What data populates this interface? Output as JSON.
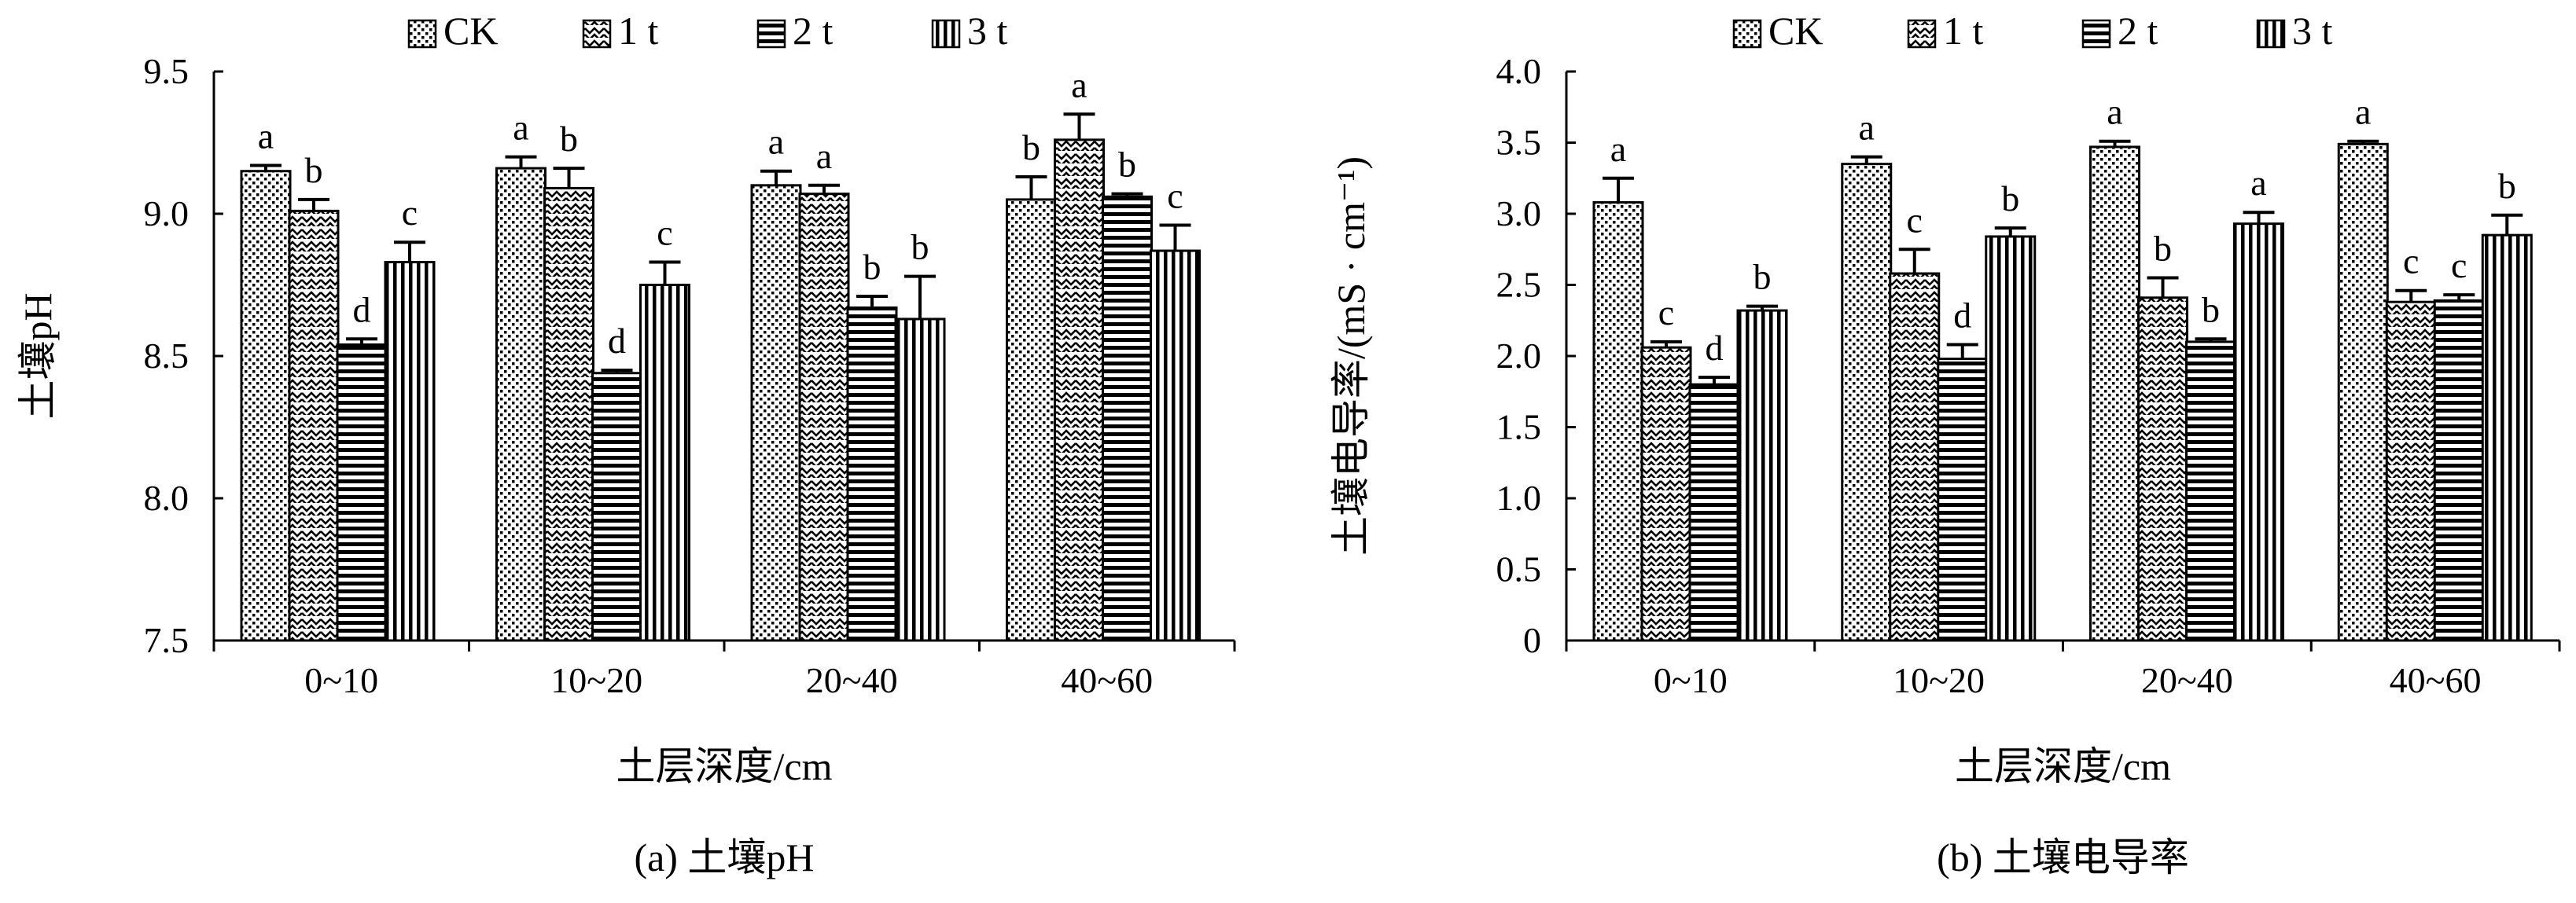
{
  "chart_data": [
    {
      "type": "bar",
      "caption": "(a) 土壤pH",
      "xlabel": "土层深度/cm",
      "ylabel": "土壤pH",
      "ylim": [
        7.5,
        9.5
      ],
      "yticks": [
        "7.5",
        "8.0",
        "8.5",
        "9.0",
        "9.5"
      ],
      "categories": [
        "0~10",
        "10~20",
        "20~40",
        "40~60"
      ],
      "legend_position": "top",
      "series": [
        {
          "name": "CK",
          "pattern": "dots",
          "values": [
            9.15,
            9.16,
            9.1,
            9.05
          ],
          "errors": [
            0.02,
            0.04,
            0.05,
            0.08
          ],
          "labels": [
            "a",
            "a",
            "a",
            "b"
          ]
        },
        {
          "name": "1 t",
          "pattern": "zigzag",
          "values": [
            9.01,
            9.09,
            9.07,
            9.26
          ],
          "errors": [
            0.04,
            0.07,
            0.03,
            0.09
          ],
          "labels": [
            "b",
            "b",
            "a",
            "a"
          ]
        },
        {
          "name": "2 t",
          "pattern": "hlines",
          "values": [
            8.54,
            8.44,
            8.67,
            9.06
          ],
          "errors": [
            0.02,
            0.01,
            0.04,
            0.01
          ],
          "labels": [
            "d",
            "d",
            "b",
            "b"
          ]
        },
        {
          "name": "3 t",
          "pattern": "vlines",
          "values": [
            8.83,
            8.75,
            8.63,
            8.87
          ],
          "errors": [
            0.07,
            0.08,
            0.15,
            0.09
          ],
          "labels": [
            "c",
            "c",
            "b",
            "c"
          ]
        }
      ]
    },
    {
      "type": "bar",
      "caption": "(b) 土壤电导率",
      "xlabel": "土层深度/cm",
      "ylabel": "土壤电导率/(mS · cm⁻¹)",
      "ylim": [
        0,
        4.0
      ],
      "yticks": [
        "0",
        "0.5",
        "1.0",
        "1.5",
        "2.0",
        "2.5",
        "3.0",
        "3.5",
        "4.0"
      ],
      "categories": [
        "0~10",
        "10~20",
        "20~40",
        "40~60"
      ],
      "legend_position": "top",
      "series": [
        {
          "name": "CK",
          "pattern": "dots",
          "values": [
            3.08,
            3.35,
            3.47,
            3.49
          ],
          "errors": [
            0.17,
            0.05,
            0.04,
            0.02
          ],
          "labels": [
            "a",
            "a",
            "a",
            "a"
          ]
        },
        {
          "name": "1 t",
          "pattern": "zigzag",
          "values": [
            2.06,
            2.58,
            2.41,
            2.38
          ],
          "errors": [
            0.04,
            0.17,
            0.14,
            0.08
          ],
          "labels": [
            "c",
            "c",
            "b",
            "c"
          ]
        },
        {
          "name": "2 t",
          "pattern": "hlines",
          "values": [
            1.8,
            1.98,
            2.1,
            2.39
          ],
          "errors": [
            0.05,
            0.1,
            0.02,
            0.04
          ],
          "labels": [
            "d",
            "d",
            "b",
            "c"
          ]
        },
        {
          "name": "3 t",
          "pattern": "vlines",
          "values": [
            2.32,
            2.84,
            2.93,
            2.85
          ],
          "errors": [
            0.03,
            0.06,
            0.08,
            0.14
          ],
          "labels": [
            "b",
            "b",
            "a",
            "b"
          ]
        }
      ]
    }
  ]
}
